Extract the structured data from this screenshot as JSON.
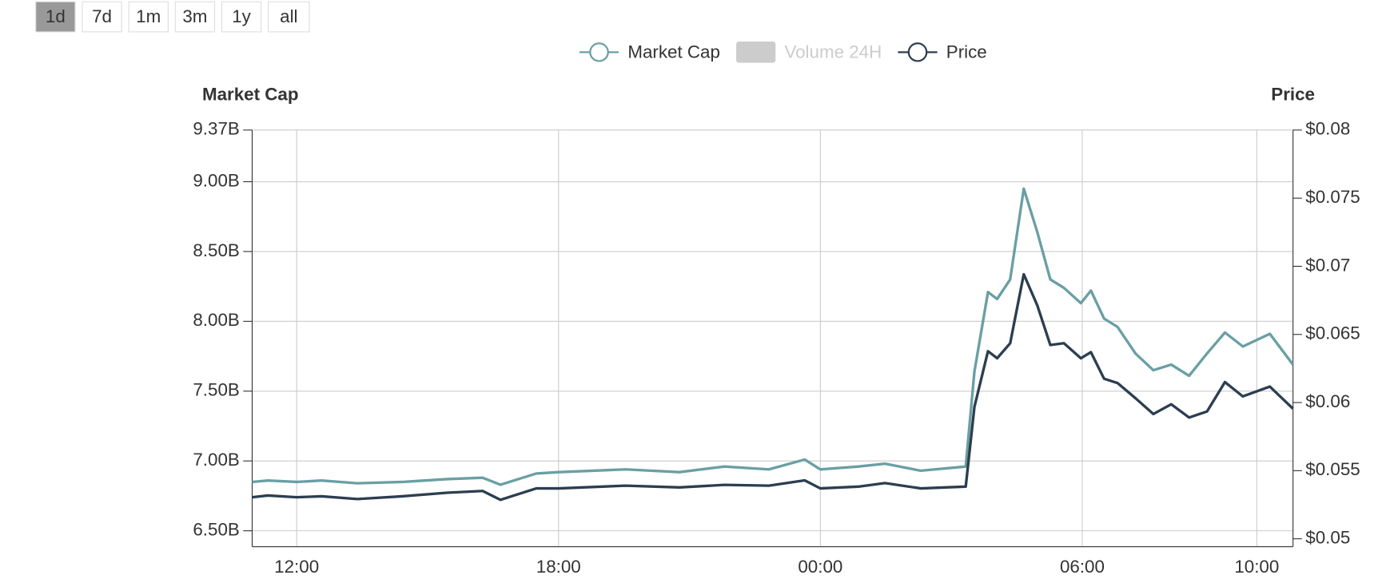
{
  "controls": {
    "buttons": [
      "1d",
      "7d",
      "1m",
      "3m",
      "1y",
      "all"
    ],
    "selected": "1d"
  },
  "chart_data": {
    "type": "line",
    "y_label": "Market Cap",
    "y2_label": "Price",
    "x": [
      10.98,
      11.34,
      12,
      12.57,
      13.39,
      14.42,
      15.44,
      16.26,
      16.67,
      17.49,
      18.0,
      19.54,
      20.77,
      21.8,
      22.82,
      23.64,
      24.0,
      24.87,
      25.48,
      26.3,
      27.33,
      27.53,
      27.84,
      28.05,
      28.35,
      28.66,
      28.97,
      29.27,
      29.58,
      29.97,
      30.2,
      30.5,
      30.81,
      31.22,
      31.63,
      32.04,
      32.45,
      32.86,
      33.27,
      33.68,
      34.3,
      34.83
    ],
    "xlim": [
      10.98,
      34.83
    ],
    "xticks": [
      {
        "value": 12,
        "label": "12:00"
      },
      {
        "value": 18,
        "label": "18:00"
      },
      {
        "value": 24,
        "label": "00:00"
      },
      {
        "value": 30,
        "label": "06:00"
      },
      {
        "value": 34,
        "label": "10:00"
      }
    ],
    "ylim": [
      6.386,
      9.37
    ],
    "yticks": [
      {
        "value": 6.5,
        "label": "6.50B"
      },
      {
        "value": 7,
        "label": "7.00B"
      },
      {
        "value": 7.5,
        "label": "7.50B"
      },
      {
        "value": 8,
        "label": "8.00B"
      },
      {
        "value": 8.5,
        "label": "8.50B"
      },
      {
        "value": 9,
        "label": "9.00B"
      },
      {
        "value": 9.37,
        "label": "9.37B"
      }
    ],
    "y2lim": [
      0.04942,
      0.08
    ],
    "y2ticks": [
      {
        "value": 0.05,
        "label": "$0.05"
      },
      {
        "value": 0.055,
        "label": "$0.055"
      },
      {
        "value": 0.06,
        "label": "$0.06"
      },
      {
        "value": 0.065,
        "label": "$0.065"
      },
      {
        "value": 0.07,
        "label": "$0.07"
      },
      {
        "value": 0.075,
        "label": "$0.075"
      },
      {
        "value": 0.08,
        "label": "$0.08"
      }
    ],
    "grid": true,
    "series": [
      {
        "name": "Market Cap",
        "color": "#6a9fa4",
        "values": [
          6.85,
          6.86,
          6.85,
          6.86,
          6.84,
          6.85,
          6.87,
          6.88,
          6.83,
          6.91,
          6.92,
          6.94,
          6.92,
          6.96,
          6.94,
          7.01,
          6.94,
          6.96,
          6.98,
          6.93,
          6.96,
          7.64,
          8.21,
          8.16,
          8.3,
          8.95,
          8.64,
          8.3,
          8.24,
          8.13,
          8.22,
          8.02,
          7.96,
          7.77,
          7.65,
          7.69,
          7.61,
          7.77,
          7.92,
          7.82,
          7.91,
          7.69
        ]
      },
      {
        "name": "Volume 24H",
        "color": "#cccccc",
        "visible": false
      },
      {
        "name": "Price",
        "color": "#2c3e50",
        "axis": "y2",
        "values": [
          0.05305,
          0.05318,
          0.05305,
          0.05312,
          0.05292,
          0.05312,
          0.05338,
          0.05351,
          0.05286,
          0.0537,
          0.0537,
          0.0539,
          0.05377,
          0.05396,
          0.0539,
          0.05429,
          0.0537,
          0.05383,
          0.05409,
          0.0537,
          0.05383,
          0.05968,
          0.06377,
          0.06325,
          0.06435,
          0.06942,
          0.06714,
          0.06422,
          0.06435,
          0.06325,
          0.0637,
          0.06175,
          0.06143,
          0.06032,
          0.05916,
          0.05987,
          0.0589,
          0.05935,
          0.0615,
          0.06045,
          0.06117,
          0.05955
        ]
      }
    ]
  }
}
